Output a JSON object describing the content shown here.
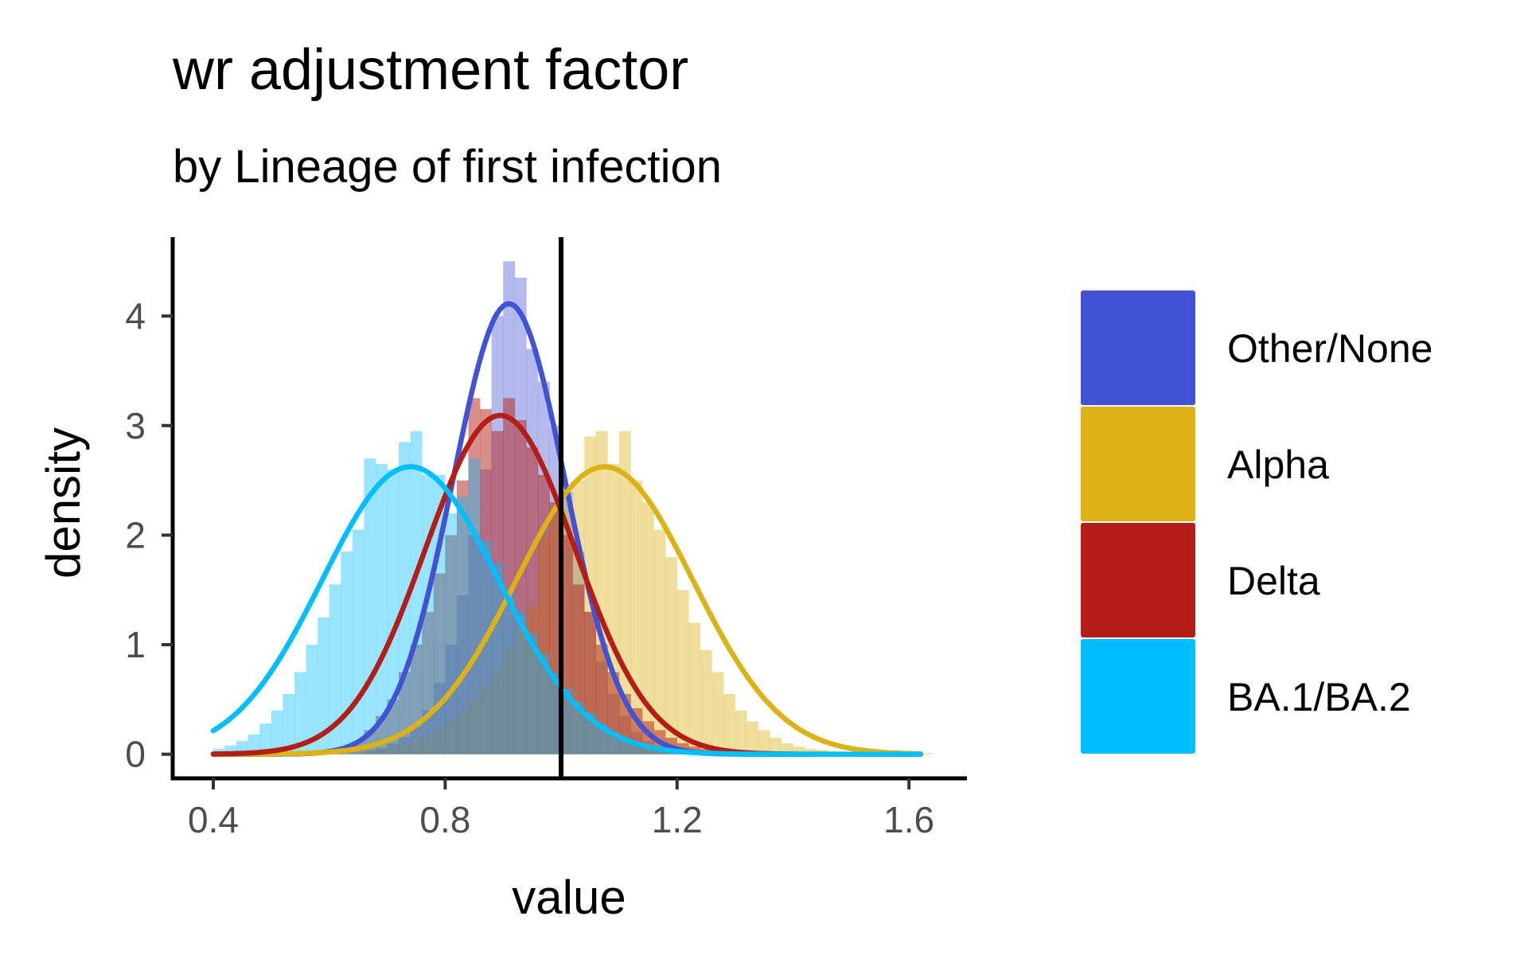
{
  "chart_data": {
    "type": "histogram-density",
    "title": "wr adjustment factor",
    "subtitle": "by Lineage of first infection",
    "xlabel": "value",
    "ylabel": "density",
    "xlim": [
      0.33,
      1.7
    ],
    "ylim": [
      -0.22,
      4.72
    ],
    "x_ticks": [
      0.4,
      0.8,
      1.2,
      1.6
    ],
    "x_tick_labels": [
      "0.4",
      "0.8",
      "1.2",
      "1.6"
    ],
    "y_ticks": [
      0,
      1,
      2,
      3,
      4
    ],
    "y_tick_labels": [
      "0",
      "1",
      "2",
      "3",
      "4"
    ],
    "reference_line_x": 1.0,
    "legend": {
      "position": "right"
    },
    "series": [
      {
        "name": "Other/None",
        "color": "#4252d4",
        "hist_alpha": 0.4,
        "density_mean": 0.91,
        "density_sd": 0.097,
        "density_range": [
          0.4,
          1.62
        ],
        "bins": [
          {
            "x0": 0.64,
            "x1": 0.66,
            "y": 0.01
          },
          {
            "x0": 0.66,
            "x1": 0.68,
            "y": 0.03
          },
          {
            "x0": 0.68,
            "x1": 0.7,
            "y": 0.05
          },
          {
            "x0": 0.7,
            "x1": 0.72,
            "y": 0.1
          },
          {
            "x0": 0.72,
            "x1": 0.74,
            "y": 0.16
          },
          {
            "x0": 0.74,
            "x1": 0.76,
            "y": 0.25
          },
          {
            "x0": 0.76,
            "x1": 0.78,
            "y": 0.4
          },
          {
            "x0": 0.78,
            "x1": 0.8,
            "y": 0.65
          },
          {
            "x0": 0.8,
            "x1": 0.82,
            "y": 1.0
          },
          {
            "x0": 0.82,
            "x1": 0.84,
            "y": 1.45
          },
          {
            "x0": 0.84,
            "x1": 0.86,
            "y": 2.0
          },
          {
            "x0": 0.86,
            "x1": 0.88,
            "y": 2.6
          },
          {
            "x0": 0.88,
            "x1": 0.9,
            "y": 4.0
          },
          {
            "x0": 0.9,
            "x1": 0.92,
            "y": 4.5
          },
          {
            "x0": 0.92,
            "x1": 0.94,
            "y": 4.35
          },
          {
            "x0": 0.94,
            "x1": 0.96,
            "y": 3.7
          },
          {
            "x0": 0.96,
            "x1": 0.98,
            "y": 3.4
          },
          {
            "x0": 0.98,
            "x1": 1.0,
            "y": 3.0
          },
          {
            "x0": 1.0,
            "x1": 1.02,
            "y": 2.4
          },
          {
            "x0": 1.02,
            "x1": 1.04,
            "y": 1.85
          },
          {
            "x0": 1.04,
            "x1": 1.06,
            "y": 1.3
          },
          {
            "x0": 1.06,
            "x1": 1.08,
            "y": 0.85
          },
          {
            "x0": 1.08,
            "x1": 1.1,
            "y": 0.55
          },
          {
            "x0": 1.1,
            "x1": 1.12,
            "y": 0.35
          },
          {
            "x0": 1.12,
            "x1": 1.14,
            "y": 0.2
          },
          {
            "x0": 1.14,
            "x1": 1.16,
            "y": 0.12
          },
          {
            "x0": 1.16,
            "x1": 1.18,
            "y": 0.06
          },
          {
            "x0": 1.18,
            "x1": 1.2,
            "y": 0.03
          }
        ]
      },
      {
        "name": "Alpha",
        "color": "#dcb214",
        "hist_alpha": 0.42,
        "density_mean": 1.075,
        "density_sd": 0.152,
        "density_range": [
          0.4,
          1.62
        ],
        "bins": [
          {
            "x0": 0.6,
            "x1": 0.62,
            "y": 0.01
          },
          {
            "x0": 0.62,
            "x1": 0.64,
            "y": 0.02
          },
          {
            "x0": 0.64,
            "x1": 0.66,
            "y": 0.03
          },
          {
            "x0": 0.66,
            "x1": 0.68,
            "y": 0.04
          },
          {
            "x0": 0.68,
            "x1": 0.7,
            "y": 0.06
          },
          {
            "x0": 0.7,
            "x1": 0.72,
            "y": 0.08
          },
          {
            "x0": 0.72,
            "x1": 0.74,
            "y": 0.1
          },
          {
            "x0": 0.74,
            "x1": 0.76,
            "y": 0.14
          },
          {
            "x0": 0.76,
            "x1": 0.78,
            "y": 0.18
          },
          {
            "x0": 0.78,
            "x1": 0.8,
            "y": 0.24
          },
          {
            "x0": 0.8,
            "x1": 0.82,
            "y": 0.3
          },
          {
            "x0": 0.82,
            "x1": 0.84,
            "y": 0.4
          },
          {
            "x0": 0.84,
            "x1": 0.86,
            "y": 0.5
          },
          {
            "x0": 0.86,
            "x1": 0.88,
            "y": 0.62
          },
          {
            "x0": 0.88,
            "x1": 0.9,
            "y": 0.78
          },
          {
            "x0": 0.9,
            "x1": 0.92,
            "y": 0.95
          },
          {
            "x0": 0.92,
            "x1": 0.94,
            "y": 1.15
          },
          {
            "x0": 0.94,
            "x1": 0.96,
            "y": 1.35
          },
          {
            "x0": 0.96,
            "x1": 0.98,
            "y": 2.0
          },
          {
            "x0": 0.98,
            "x1": 1.0,
            "y": 2.25
          },
          {
            "x0": 1.0,
            "x1": 1.02,
            "y": 2.3
          },
          {
            "x0": 1.02,
            "x1": 1.04,
            "y": 2.5
          },
          {
            "x0": 1.04,
            "x1": 1.06,
            "y": 2.9
          },
          {
            "x0": 1.06,
            "x1": 1.08,
            "y": 2.95
          },
          {
            "x0": 1.08,
            "x1": 1.1,
            "y": 2.65
          },
          {
            "x0": 1.1,
            "x1": 1.12,
            "y": 2.95
          },
          {
            "x0": 1.12,
            "x1": 1.14,
            "y": 2.5
          },
          {
            "x0": 1.14,
            "x1": 1.16,
            "y": 2.3
          },
          {
            "x0": 1.16,
            "x1": 1.18,
            "y": 2.05
          },
          {
            "x0": 1.18,
            "x1": 1.2,
            "y": 1.8
          },
          {
            "x0": 1.2,
            "x1": 1.22,
            "y": 1.5
          },
          {
            "x0": 1.22,
            "x1": 1.24,
            "y": 1.2
          },
          {
            "x0": 1.24,
            "x1": 1.26,
            "y": 0.95
          },
          {
            "x0": 1.26,
            "x1": 1.28,
            "y": 0.75
          },
          {
            "x0": 1.28,
            "x1": 1.3,
            "y": 0.55
          },
          {
            "x0": 1.3,
            "x1": 1.32,
            "y": 0.4
          },
          {
            "x0": 1.32,
            "x1": 1.34,
            "y": 0.3
          },
          {
            "x0": 1.34,
            "x1": 1.36,
            "y": 0.22
          },
          {
            "x0": 1.36,
            "x1": 1.38,
            "y": 0.15
          },
          {
            "x0": 1.38,
            "x1": 1.4,
            "y": 0.1
          },
          {
            "x0": 1.4,
            "x1": 1.42,
            "y": 0.07
          },
          {
            "x0": 1.42,
            "x1": 1.44,
            "y": 0.05
          },
          {
            "x0": 1.44,
            "x1": 1.46,
            "y": 0.04
          },
          {
            "x0": 1.46,
            "x1": 1.48,
            "y": 0.03
          },
          {
            "x0": 1.48,
            "x1": 1.5,
            "y": 0.02
          },
          {
            "x0": 1.5,
            "x1": 1.52,
            "y": 0.02
          },
          {
            "x0": 1.52,
            "x1": 1.54,
            "y": 0.01
          },
          {
            "x0": 1.54,
            "x1": 1.56,
            "y": 0.01
          },
          {
            "x0": 1.56,
            "x1": 1.58,
            "y": 0.01
          },
          {
            "x0": 1.58,
            "x1": 1.6,
            "y": 0.01
          },
          {
            "x0": 1.6,
            "x1": 1.62,
            "y": 0.01
          },
          {
            "x0": 1.62,
            "x1": 1.64,
            "y": 0.01
          }
        ]
      },
      {
        "name": "Delta",
        "color": "#b41e16",
        "hist_alpha": 0.5,
        "density_mean": 0.895,
        "density_sd": 0.129,
        "density_range": [
          0.4,
          1.62
        ],
        "bins": [
          {
            "x0": 0.56,
            "x1": 0.58,
            "y": 0.01
          },
          {
            "x0": 0.58,
            "x1": 0.6,
            "y": 0.02
          },
          {
            "x0": 0.6,
            "x1": 0.62,
            "y": 0.04
          },
          {
            "x0": 0.62,
            "x1": 0.64,
            "y": 0.07
          },
          {
            "x0": 0.64,
            "x1": 0.66,
            "y": 0.12
          },
          {
            "x0": 0.66,
            "x1": 0.68,
            "y": 0.22
          },
          {
            "x0": 0.68,
            "x1": 0.7,
            "y": 0.35
          },
          {
            "x0": 0.7,
            "x1": 0.72,
            "y": 0.5
          },
          {
            "x0": 0.72,
            "x1": 0.74,
            "y": 0.75
          },
          {
            "x0": 0.74,
            "x1": 0.76,
            "y": 1.0
          },
          {
            "x0": 0.76,
            "x1": 0.78,
            "y": 1.3
          },
          {
            "x0": 0.78,
            "x1": 0.8,
            "y": 1.65
          },
          {
            "x0": 0.8,
            "x1": 0.82,
            "y": 2.0
          },
          {
            "x0": 0.82,
            "x1": 0.84,
            "y": 2.5
          },
          {
            "x0": 0.84,
            "x1": 0.86,
            "y": 3.25
          },
          {
            "x0": 0.86,
            "x1": 0.88,
            "y": 3.15
          },
          {
            "x0": 0.88,
            "x1": 0.9,
            "y": 2.95
          },
          {
            "x0": 0.9,
            "x1": 0.92,
            "y": 3.25
          },
          {
            "x0": 0.92,
            "x1": 0.94,
            "y": 3.05
          },
          {
            "x0": 0.94,
            "x1": 0.96,
            "y": 2.8
          },
          {
            "x0": 0.96,
            "x1": 0.98,
            "y": 2.55
          },
          {
            "x0": 0.98,
            "x1": 1.0,
            "y": 2.3
          },
          {
            "x0": 1.0,
            "x1": 1.02,
            "y": 2.0
          },
          {
            "x0": 1.02,
            "x1": 1.04,
            "y": 1.55
          },
          {
            "x0": 1.04,
            "x1": 1.06,
            "y": 1.3
          },
          {
            "x0": 1.06,
            "x1": 1.08,
            "y": 1.0
          },
          {
            "x0": 1.08,
            "x1": 1.1,
            "y": 0.75
          },
          {
            "x0": 1.1,
            "x1": 1.12,
            "y": 0.55
          },
          {
            "x0": 1.12,
            "x1": 1.14,
            "y": 0.42
          },
          {
            "x0": 1.14,
            "x1": 1.16,
            "y": 0.3
          },
          {
            "x0": 1.16,
            "x1": 1.18,
            "y": 0.22
          },
          {
            "x0": 1.18,
            "x1": 1.2,
            "y": 0.15
          },
          {
            "x0": 1.2,
            "x1": 1.22,
            "y": 0.1
          },
          {
            "x0": 1.22,
            "x1": 1.24,
            "y": 0.07
          },
          {
            "x0": 1.24,
            "x1": 1.26,
            "y": 0.05
          },
          {
            "x0": 1.26,
            "x1": 1.28,
            "y": 0.03
          },
          {
            "x0": 1.28,
            "x1": 1.3,
            "y": 0.02
          },
          {
            "x0": 1.3,
            "x1": 1.32,
            "y": 0.01
          }
        ]
      },
      {
        "name": "BA.1/BA.2",
        "color": "#00bfff",
        "hist_alpha": 0.4,
        "density_mean": 0.74,
        "density_sd": 0.152,
        "density_range": [
          0.4,
          1.62
        ],
        "bins": [
          {
            "x0": 0.4,
            "x1": 0.42,
            "y": 0.05
          },
          {
            "x0": 0.42,
            "x1": 0.44,
            "y": 0.08
          },
          {
            "x0": 0.44,
            "x1": 0.46,
            "y": 0.12
          },
          {
            "x0": 0.46,
            "x1": 0.48,
            "y": 0.18
          },
          {
            "x0": 0.48,
            "x1": 0.5,
            "y": 0.28
          },
          {
            "x0": 0.5,
            "x1": 0.52,
            "y": 0.4
          },
          {
            "x0": 0.52,
            "x1": 0.54,
            "y": 0.55
          },
          {
            "x0": 0.54,
            "x1": 0.56,
            "y": 0.75
          },
          {
            "x0": 0.56,
            "x1": 0.58,
            "y": 1.0
          },
          {
            "x0": 0.58,
            "x1": 0.6,
            "y": 1.25
          },
          {
            "x0": 0.6,
            "x1": 0.62,
            "y": 1.55
          },
          {
            "x0": 0.62,
            "x1": 0.64,
            "y": 1.85
          },
          {
            "x0": 0.64,
            "x1": 0.66,
            "y": 2.05
          },
          {
            "x0": 0.66,
            "x1": 0.68,
            "y": 2.7
          },
          {
            "x0": 0.68,
            "x1": 0.7,
            "y": 2.65
          },
          {
            "x0": 0.7,
            "x1": 0.72,
            "y": 2.6
          },
          {
            "x0": 0.72,
            "x1": 0.74,
            "y": 2.85
          },
          {
            "x0": 0.74,
            "x1": 0.76,
            "y": 2.95
          },
          {
            "x0": 0.76,
            "x1": 0.78,
            "y": 2.55
          },
          {
            "x0": 0.78,
            "x1": 0.8,
            "y": 2.55
          },
          {
            "x0": 0.8,
            "x1": 0.82,
            "y": 2.2
          },
          {
            "x0": 0.82,
            "x1": 0.84,
            "y": 2.35
          },
          {
            "x0": 0.84,
            "x1": 0.86,
            "y": 2.7
          },
          {
            "x0": 0.86,
            "x1": 0.88,
            "y": 1.95
          },
          {
            "x0": 0.88,
            "x1": 0.9,
            "y": 1.75
          },
          {
            "x0": 0.9,
            "x1": 0.92,
            "y": 1.5
          },
          {
            "x0": 0.92,
            "x1": 0.94,
            "y": 1.3
          },
          {
            "x0": 0.94,
            "x1": 0.96,
            "y": 1.1
          },
          {
            "x0": 0.96,
            "x1": 0.98,
            "y": 0.92
          },
          {
            "x0": 0.98,
            "x1": 1.0,
            "y": 0.75
          },
          {
            "x0": 1.0,
            "x1": 1.02,
            "y": 0.6
          },
          {
            "x0": 1.02,
            "x1": 1.04,
            "y": 0.48
          },
          {
            "x0": 1.04,
            "x1": 1.06,
            "y": 0.38
          },
          {
            "x0": 1.06,
            "x1": 1.08,
            "y": 0.28
          },
          {
            "x0": 1.08,
            "x1": 1.1,
            "y": 0.2
          },
          {
            "x0": 1.1,
            "x1": 1.12,
            "y": 0.14
          },
          {
            "x0": 1.12,
            "x1": 1.14,
            "y": 0.1
          },
          {
            "x0": 1.14,
            "x1": 1.16,
            "y": 0.07
          },
          {
            "x0": 1.16,
            "x1": 1.18,
            "y": 0.05
          },
          {
            "x0": 1.18,
            "x1": 1.2,
            "y": 0.03
          },
          {
            "x0": 1.2,
            "x1": 1.22,
            "y": 0.02
          }
        ]
      }
    ]
  }
}
